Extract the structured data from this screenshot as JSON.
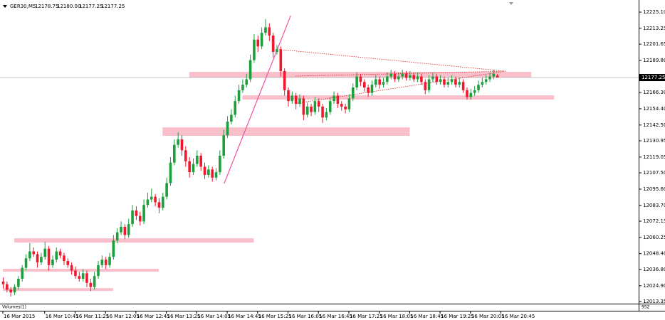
{
  "chart_data": {
    "type": "candlestick",
    "title": "GER30,M5",
    "header_ohlc": [
      "12178.75",
      "12180.00",
      "12177.25",
      "12177.25"
    ],
    "bull_color": "#1e9e3c",
    "bear_color": "#f0182c",
    "ylim": [
      12011.8,
      12231.9
    ],
    "yticks": [
      {
        "value": 12225.1,
        "label": "12225.10"
      },
      12213.25,
      12201.65,
      {
        "value": 12189.8,
        "label": "12189.80"
      },
      {
        "value": 12166.3,
        "label": "12166.30"
      },
      {
        "value": 12154.4,
        "label": "12154.40"
      },
      {
        "value": 12142.5,
        "label": "12142.50"
      },
      12130.95,
      12119.05,
      {
        "value": 12107.5,
        "label": "12107.50"
      },
      {
        "value": 12095.6,
        "label": "12095.60"
      },
      {
        "value": 12083.7,
        "label": "12083.70"
      },
      12072.15,
      12060.25,
      {
        "value": 12048.4,
        "label": "12048.40"
      },
      {
        "value": 12036.8,
        "label": "12036.80"
      },
      {
        "value": 12024.9,
        "label": "12024.90"
      },
      12013.35
    ],
    "current_price": 12177.25,
    "xticks": [
      {
        "value": 0,
        "label": "16 Mar 2015"
      },
      {
        "value": 11,
        "label": "16 Mar 10:45"
      },
      {
        "value": 19,
        "label": "16 Mar 11:25"
      },
      {
        "value": 27,
        "label": "16 Mar 12:05"
      },
      {
        "value": 35,
        "label": "16 Mar 12:45"
      },
      {
        "value": 43,
        "label": "16 Mar 13:25"
      },
      {
        "value": 51,
        "label": "16 Mar 14:05"
      },
      {
        "value": 59,
        "label": "16 Mar 14:45"
      },
      {
        "value": 67,
        "label": "16 Mar 15:25"
      },
      {
        "value": 75,
        "label": "16 Mar 16:05"
      },
      {
        "value": 83,
        "label": "16 Mar 16:45"
      },
      {
        "value": 91,
        "label": "16 Mar 17:25"
      },
      {
        "value": 99,
        "label": "16 Mar 18:05"
      },
      {
        "value": 107,
        "label": "16 Mar 18:45"
      },
      {
        "value": 115,
        "label": "16 Mar 19:25"
      },
      {
        "value": 123,
        "label": "16 Mar 20:05"
      },
      {
        "value": 131,
        "label": "16 Mar 20:45"
      }
    ],
    "volume_label": "Volumes(1)",
    "volume_axis_label": "952",
    "zones": [
      [
        49,
        139,
        12181.4,
        12177.2
      ],
      [
        63,
        145,
        12164.2,
        12161.1
      ],
      [
        42,
        107,
        12140.8,
        12134.6
      ],
      [
        3,
        66,
        12059.6,
        12056.5
      ],
      [
        0,
        41,
        12037.3,
        12035.2
      ],
      [
        0,
        29,
        12023.2,
        12021.1
      ]
    ],
    "trend_line": [
      58.2,
      12099.7,
      75.7,
      12222.5
    ],
    "dotted_lines": [
      [
        73.8,
        12197.5,
        132.2,
        12181.9
      ],
      [
        77,
        12178.3,
        132.2,
        12181.9
      ],
      [
        77.5,
        12158.5,
        132.2,
        12181.9
      ]
    ],
    "candles": [
      [
        12028,
        12031,
        12023,
        12026
      ],
      [
        12026,
        12028,
        12020,
        12022
      ],
      [
        12022,
        12024,
        12017,
        12020
      ],
      [
        12020,
        12026,
        12018,
        12024
      ],
      [
        12024,
        12032,
        12022,
        12030
      ],
      [
        12030,
        12040,
        12028,
        12038
      ],
      [
        12038,
        12048,
        12036,
        12045
      ],
      [
        12045,
        12056,
        12043,
        12050
      ],
      [
        12050,
        12053,
        12046,
        12048
      ],
      [
        12048,
        12050,
        12038,
        12042
      ],
      [
        12042,
        12049,
        12040,
        12046
      ],
      [
        12046,
        12057,
        12044,
        12052
      ],
      [
        12052,
        12054,
        12036,
        12040
      ],
      [
        12040,
        12047,
        12038,
        12044
      ],
      [
        12044,
        12053,
        12042,
        12050
      ],
      [
        12050,
        12052,
        12045,
        12047
      ],
      [
        12047,
        12049,
        12040,
        12043
      ],
      [
        12043,
        12045,
        12038,
        12040
      ],
      [
        12040,
        12042,
        12033,
        12036
      ],
      [
        12036,
        12039,
        12030,
        12032
      ],
      [
        12032,
        12035,
        12028,
        12030
      ],
      [
        12030,
        12037,
        12028,
        12034
      ],
      [
        12034,
        12036,
        12024,
        12027
      ],
      [
        12027,
        12030,
        12021,
        12024
      ],
      [
        12024,
        12035,
        12022,
        12032
      ],
      [
        12032,
        12043,
        12030,
        12040
      ],
      [
        12040,
        12047,
        12038,
        12044
      ],
      [
        12044,
        12046,
        12037,
        12040
      ],
      [
        12040,
        12049,
        12038,
        12046
      ],
      [
        12046,
        12062,
        12044,
        12058
      ],
      [
        12058,
        12067,
        12056,
        12064
      ],
      [
        12064,
        12072,
        12062,
        12068
      ],
      [
        12068,
        12070,
        12059,
        12062
      ],
      [
        12062,
        12074,
        12060,
        12070
      ],
      [
        12070,
        12084,
        12068,
        12080
      ],
      [
        12080,
        12083,
        12073,
        12076
      ],
      [
        12076,
        12079,
        12069,
        12072
      ],
      [
        12072,
        12088,
        12070,
        12084
      ],
      [
        12084,
        12093,
        12082,
        12088
      ],
      [
        12088,
        12096,
        12086,
        12090
      ],
      [
        12090,
        12092,
        12083,
        12086
      ],
      [
        12086,
        12089,
        12078,
        12082
      ],
      [
        12082,
        12093,
        12080,
        12090
      ],
      [
        12090,
        12104,
        12088,
        12100
      ],
      [
        12100,
        12119,
        12098,
        12115
      ],
      [
        12115,
        12132,
        12113,
        12128
      ],
      [
        12128,
        12137,
        12126,
        12132
      ],
      [
        12132,
        12135,
        12120,
        12124
      ],
      [
        12124,
        12127,
        12112,
        12116
      ],
      [
        12116,
        12119,
        12104,
        12108
      ],
      [
        12108,
        12118,
        12106,
        12114
      ],
      [
        12114,
        12124,
        12112,
        12120
      ],
      [
        12120,
        12122,
        12109,
        12112
      ],
      [
        12112,
        12115,
        12103,
        12106
      ],
      [
        12106,
        12113,
        12104,
        12110
      ],
      [
        12110,
        12112,
        12101,
        12104
      ],
      [
        12104,
        12111,
        12102,
        12108
      ],
      [
        12108,
        12124,
        12106,
        12120
      ],
      [
        12120,
        12139,
        12118,
        12135
      ],
      [
        12135,
        12149,
        12133,
        12145
      ],
      [
        12145,
        12154,
        12143,
        12150
      ],
      [
        12150,
        12164,
        12148,
        12160
      ],
      [
        12160,
        12172,
        12158,
        12168
      ],
      [
        12168,
        12176,
        12166,
        12172
      ],
      [
        12172,
        12180,
        12170,
        12176
      ],
      [
        12176,
        12194,
        12174,
        12190
      ],
      [
        12190,
        12209,
        12188,
        12205
      ],
      [
        12205,
        12208,
        12196,
        12200
      ],
      [
        12200,
        12214,
        12198,
        12210
      ],
      [
        12210,
        12220,
        12208,
        12214
      ],
      [
        12214,
        12217,
        12204,
        12208
      ],
      [
        12208,
        12210,
        12192,
        12196
      ],
      [
        12196,
        12201,
        12194,
        12198
      ],
      [
        12198,
        12200,
        12178,
        12182
      ],
      [
        12182,
        12184,
        12164,
        12168
      ],
      [
        12168,
        12170,
        12156,
        12160
      ],
      [
        12160,
        12167,
        12158,
        12164
      ],
      [
        12164,
        12166,
        12154,
        12158
      ],
      [
        12158,
        12165,
        12156,
        12162
      ],
      [
        12162,
        12164,
        12146,
        12150
      ],
      [
        12150,
        12159,
        12148,
        12156
      ],
      [
        12156,
        12158,
        12149,
        12152
      ],
      [
        12152,
        12163,
        12150,
        12160
      ],
      [
        12160,
        12162,
        12152,
        12156
      ],
      [
        12156,
        12158,
        12144,
        12148
      ],
      [
        12148,
        12155,
        12146,
        12152
      ],
      [
        12152,
        12163,
        12150,
        12160
      ],
      [
        12160,
        12167,
        12158,
        12164
      ],
      [
        12164,
        12166,
        12155,
        12158
      ],
      [
        12158,
        12160,
        12153,
        12156
      ],
      [
        12156,
        12158,
        12151,
        12154
      ],
      [
        12154,
        12165,
        12152,
        12162
      ],
      [
        12162,
        12173,
        12160,
        12170
      ],
      [
        12170,
        12181,
        12168,
        12178
      ],
      [
        12178,
        12180,
        12171,
        12174
      ],
      [
        12174,
        12176,
        12167,
        12170
      ],
      [
        12170,
        12172,
        12163,
        12166
      ],
      [
        12166,
        12175,
        12164,
        12172
      ],
      [
        12172,
        12179,
        12170,
        12176
      ],
      [
        12176,
        12178,
        12169,
        12172
      ],
      [
        12172,
        12177,
        12170,
        12174
      ],
      [
        12174,
        12181,
        12172,
        12178
      ],
      [
        12178,
        12183,
        12176,
        12180
      ],
      [
        12180,
        12182,
        12174,
        12176
      ],
      [
        12176,
        12181,
        12174,
        12178
      ],
      [
        12178,
        12183,
        12176,
        12180
      ],
      [
        12180,
        12182,
        12175,
        12177
      ],
      [
        12177,
        12182,
        12175,
        12179
      ],
      [
        12179,
        12181,
        12174,
        12176
      ],
      [
        12176,
        12181,
        12174,
        12178
      ],
      [
        12178,
        12180,
        12172,
        12174
      ],
      [
        12174,
        12176,
        12165,
        12168
      ],
      [
        12168,
        12179,
        12166,
        12176
      ],
      [
        12176,
        12181,
        12174,
        12178
      ],
      [
        12178,
        12180,
        12172,
        12174
      ],
      [
        12174,
        12179,
        12172,
        12176
      ],
      [
        12176,
        12178,
        12170,
        12172
      ],
      [
        12172,
        12177,
        12170,
        12174
      ],
      [
        12174,
        12179,
        12172,
        12176
      ],
      [
        12176,
        12178,
        12170,
        12172
      ],
      [
        12172,
        12177,
        12170,
        12174
      ],
      [
        12174,
        12176,
        12166,
        12168
      ],
      [
        12168,
        12170,
        12161,
        12163
      ],
      [
        12163,
        12169,
        12161,
        12166
      ],
      [
        12166,
        12171,
        12164,
        12168
      ],
      [
        12168,
        12175,
        12166,
        12172
      ],
      [
        12172,
        12177,
        12170,
        12174
      ],
      [
        12174,
        12179,
        12172,
        12176
      ],
      [
        12176,
        12181,
        12174,
        12178
      ],
      [
        12178,
        12183,
        12176,
        12180
      ],
      [
        12178.75,
        12180,
        12177.25,
        12177.25
      ]
    ]
  }
}
